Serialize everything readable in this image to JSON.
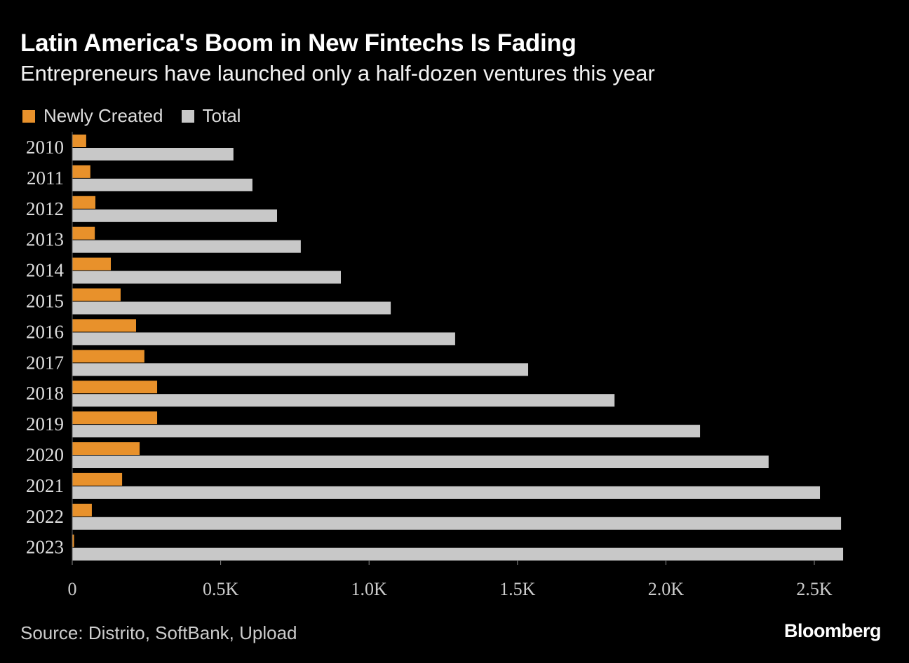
{
  "title": "Latin America's Boom in New Fintechs Is Fading",
  "subtitle": "Entrepreneurs have launched only a half-dozen ventures this year",
  "source": "Source: Distrito, SoftBank, Upload",
  "logo": "Bloomberg",
  "colors": {
    "newly": "#e8912b",
    "total": "#c8c8c8",
    "background": "#000000"
  },
  "chart_data": {
    "type": "bar",
    "orientation": "horizontal",
    "title": "Latin America's Boom in New Fintechs Is Fading",
    "subtitle": "Entrepreneurs have launched only a half-dozen ventures this year",
    "categories": [
      "2010",
      "2011",
      "2012",
      "2013",
      "2014",
      "2015",
      "2016",
      "2017",
      "2018",
      "2019",
      "2020",
      "2021",
      "2022",
      "2023"
    ],
    "series": [
      {
        "name": "Newly Created",
        "color": "#e8912b",
        "values": [
          47,
          61,
          78,
          76,
          130,
          163,
          215,
          243,
          286,
          286,
          227,
          168,
          66,
          6
        ]
      },
      {
        "name": "Total",
        "color": "#c8c8c8",
        "values": [
          543,
          607,
          690,
          770,
          905,
          1073,
          1290,
          1536,
          1827,
          2115,
          2346,
          2519,
          2590,
          2597
        ]
      }
    ],
    "xlim": [
      0,
      2600
    ],
    "xticks": [
      0,
      500,
      1000,
      1500,
      2000,
      2500
    ],
    "xtick_labels": [
      "0",
      "0.5K",
      "1.0K",
      "1.5K",
      "2.0K",
      "2.5K"
    ],
    "xlabel": "",
    "ylabel": "",
    "grid": false,
    "legend": "top-left"
  }
}
